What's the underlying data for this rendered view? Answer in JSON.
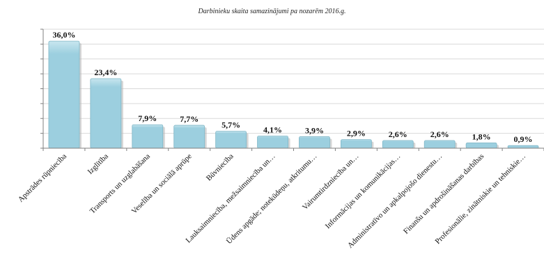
{
  "colors": {
    "bar_fill": "#9ccfdf",
    "bar_top": "#c8e6ef",
    "bar_stroke": "#7fb6c6",
    "bar_shadow": "#b9b9b9",
    "grid": "#d9d9d9",
    "axis": "#7f7f7f",
    "text": "#111111"
  },
  "chart_data": {
    "type": "bar",
    "title": "Darbinieku skaita samazinājumi pa nozarēm 2016.g.",
    "xlabel": "",
    "ylabel": "",
    "ylim": [
      0,
      40
    ],
    "grid": true,
    "legend": "none",
    "categories": [
      "Apstrādes rūpniecība",
      "Izglītība",
      "Transports un uzglabāšana",
      "Veselība un sociālā aprūpe",
      "Būvniecība",
      "Lauksaimniecība, mežsaimniecība un…",
      "Ūdens apgāde; notekūdeņu, atkritumu…",
      "Vairumtirdzniecība un…",
      "Informācijas un komunikācijas…",
      "Administratīvo un apkalpojošo dienestu…",
      "Finanšu un apdrošināšanas darbības",
      "Profesionālie, zinātniskie un tehniskie…"
    ],
    "values": [
      36.0,
      23.4,
      7.9,
      7.7,
      5.7,
      4.1,
      3.9,
      2.9,
      2.6,
      2.6,
      1.8,
      0.9
    ],
    "data_labels": [
      "36,0%",
      "23,4%",
      "7,9%",
      "7,7%",
      "5,7%",
      "4,1%",
      "3,9%",
      "2,9%",
      "2,6%",
      "2,6%",
      "1,8%",
      "0,9%"
    ]
  }
}
